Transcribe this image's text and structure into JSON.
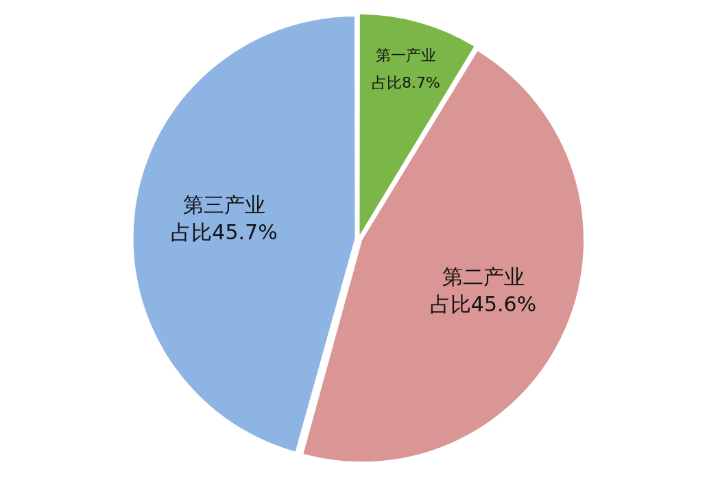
{
  "chart_data": {
    "type": "pie",
    "categories": [
      "第一产业",
      "第二产业",
      "第三产业"
    ],
    "values": [
      8.7,
      45.6,
      45.7
    ],
    "colors": [
      "#7ab648",
      "#d99694",
      "#8eb4e3"
    ],
    "value_labels": [
      "占比8.7%",
      "占比45.6%",
      "占比45.7%"
    ],
    "legend": false
  }
}
